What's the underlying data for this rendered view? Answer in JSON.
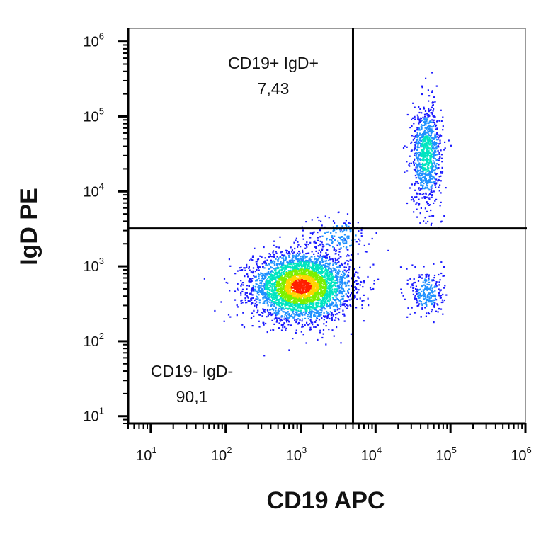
{
  "chart_data": {
    "type": "scatter",
    "subtype": "flow-cytometry-density-dot-plot",
    "title": "",
    "xlabel": "CD19 APC",
    "ylabel": "IgD PE",
    "x_scale": "log",
    "y_scale": "log",
    "xlim": [
      5,
      1000000
    ],
    "ylim": [
      8,
      1500000
    ],
    "x_ticks": [
      {
        "base": "10",
        "exp": "1",
        "value": 10
      },
      {
        "base": "10",
        "exp": "2",
        "value": 100
      },
      {
        "base": "10",
        "exp": "3",
        "value": 1000
      },
      {
        "base": "10",
        "exp": "4",
        "value": 10000
      },
      {
        "base": "10",
        "exp": "5",
        "value": 100000
      },
      {
        "base": "10",
        "exp": "6",
        "value": 1000000
      }
    ],
    "y_ticks": [
      {
        "base": "10",
        "exp": "1",
        "value": 10
      },
      {
        "base": "10",
        "exp": "2",
        "value": 100
      },
      {
        "base": "10",
        "exp": "3",
        "value": 1000
      },
      {
        "base": "10",
        "exp": "4",
        "value": 10000
      },
      {
        "base": "10",
        "exp": "5",
        "value": 100000
      },
      {
        "base": "10",
        "exp": "6",
        "value": 1000000
      }
    ],
    "gate": {
      "x": 5000,
      "y": 3200
    },
    "quadrants": [
      {
        "label": "CD19+ IgD+",
        "value": "7,43",
        "position": "top-left"
      },
      {
        "label": "CD19- IgD-",
        "value": "90,1",
        "position": "bottom-left"
      }
    ],
    "populations": [
      {
        "name": "CD19- IgD-",
        "center_x": 1000,
        "center_y": 550,
        "spread_x_log": 0.32,
        "spread_y_log": 0.22,
        "count": 3800
      },
      {
        "name": "CD19+ IgD+",
        "center_x": 47000,
        "center_y": 32000,
        "spread_x_log": 0.1,
        "spread_y_log": 0.33,
        "count": 900
      },
      {
        "name": "CD19+ IgD-",
        "center_x": 48000,
        "center_y": 450,
        "spread_x_log": 0.11,
        "spread_y_log": 0.16,
        "count": 260
      },
      {
        "name": "transition",
        "center_x": 3200,
        "center_y": 2600,
        "spread_x_log": 0.2,
        "spread_y_log": 0.14,
        "count": 160
      }
    ],
    "density_colors": [
      "#1a1aff",
      "#1e90ff",
      "#00e5c0",
      "#7cf000",
      "#ffd400",
      "#ff2000"
    ],
    "grid": false,
    "legend": "none"
  }
}
